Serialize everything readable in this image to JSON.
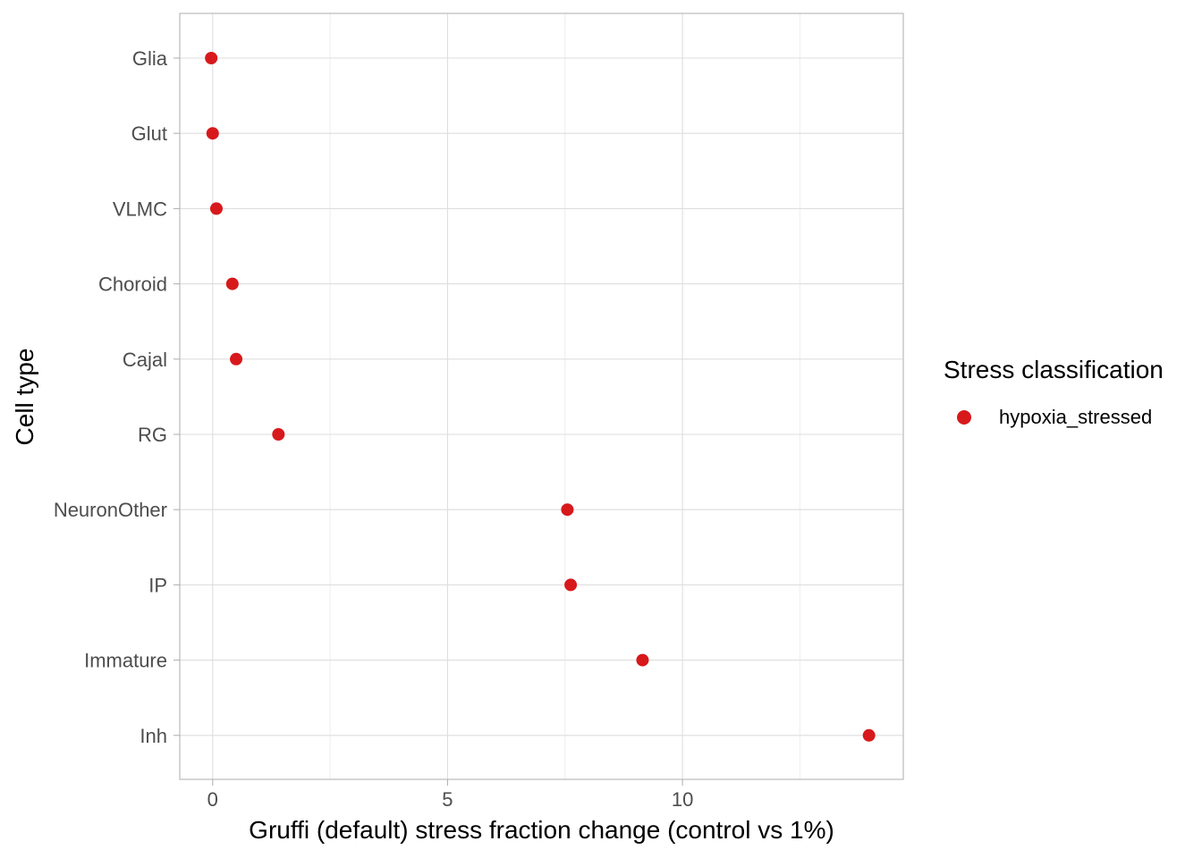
{
  "chart_data": {
    "type": "scatter",
    "xlabel": "Gruffi (default) stress fraction change (control vs 1%)",
    "ylabel": "Cell type",
    "xlim": [
      -0.7,
      14.7
    ],
    "x_ticks": [
      0,
      5,
      10
    ],
    "x_tick_labels": [
      "0",
      "5",
      "10"
    ],
    "x_minor_ticks": [
      2.5,
      7.5,
      12.5
    ],
    "grid": true,
    "categories": [
      "Glia",
      "Glut",
      "VLMC",
      "Choroid",
      "Cajal",
      "RG",
      "NeuronOther",
      "IP",
      "Immature",
      "Inh"
    ],
    "series": [
      {
        "name": "hypoxia_stressed",
        "color": "#d7191c",
        "values": [
          -0.03,
          0.0,
          0.08,
          0.42,
          0.5,
          1.4,
          7.55,
          7.62,
          9.15,
          13.97
        ]
      }
    ],
    "legend": {
      "title": "Stress classification",
      "position": "right",
      "items": [
        {
          "label": "hypoxia_stressed",
          "color": "#d7191c"
        }
      ]
    },
    "colors": {
      "panel_border": "#b3b3b3",
      "grid_major": "#dedede",
      "grid_minor": "#efefef",
      "tick_text": "#4d4d4d",
      "axis_title": "#000000"
    }
  }
}
